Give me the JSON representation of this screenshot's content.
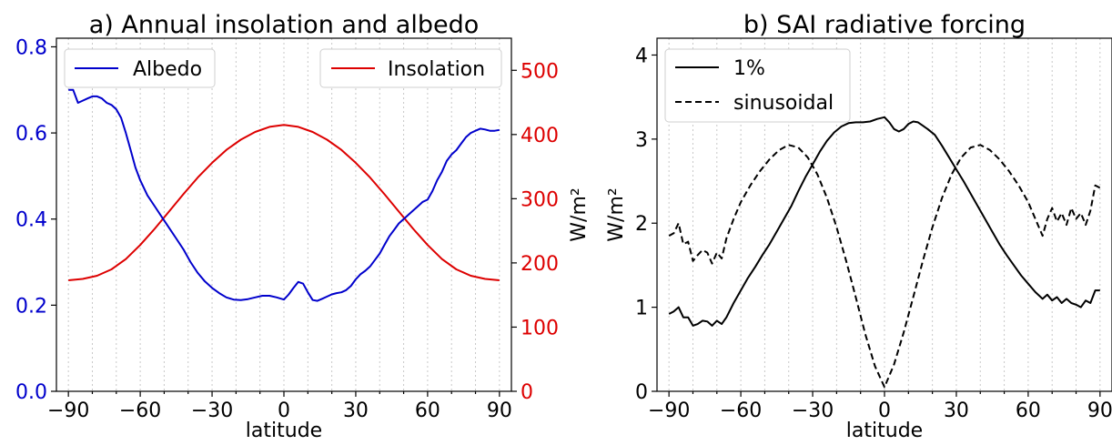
{
  "chart_data": [
    {
      "type": "line",
      "title": "a) Annual insolation and albedo",
      "xlabel": "latitude",
      "ylabel_left": "",
      "ylabel_right": "W/m²",
      "xlim": [
        -95,
        95
      ],
      "ylim_left": [
        0,
        0.82
      ],
      "ylim_right": [
        0,
        550
      ],
      "x_ticks": [
        -90,
        -60,
        -30,
        0,
        30,
        60,
        90
      ],
      "x_tick_labels": [
        "−90",
        "−60",
        "−30",
        "0",
        "30",
        "60",
        "90"
      ],
      "y_ticks_left": [
        0.0,
        0.2,
        0.4,
        0.6,
        0.8
      ],
      "y_tick_labels_left": [
        "0.0",
        "0.2",
        "0.4",
        "0.6",
        "0.8"
      ],
      "y_ticks_right": [
        0,
        100,
        200,
        300,
        400,
        500
      ],
      "y_tick_labels_right": [
        "0",
        "100",
        "200",
        "300",
        "400",
        "500"
      ],
      "grid": "vertical dotted at every 10° latitude",
      "left_axis_color": "#0000cc",
      "right_axis_color": "#dd0000",
      "legend_left": "upper-left",
      "legend_right": "upper-right",
      "series": [
        {
          "name": "Albedo",
          "axis": "left",
          "color": "#0000cc",
          "x": [
            -90,
            -88,
            -86,
            -84,
            -82,
            -80,
            -78,
            -76,
            -74,
            -72,
            -70,
            -68,
            -66,
            -64,
            -62,
            -60,
            -57,
            -54,
            -51,
            -48,
            -45,
            -42,
            -39,
            -36,
            -33,
            -30,
            -27,
            -24,
            -21,
            -18,
            -15,
            -12,
            -9,
            -6,
            -3,
            0,
            2,
            4,
            6,
            8,
            10,
            12,
            14,
            16,
            18,
            20,
            22,
            24,
            26,
            28,
            30,
            32,
            34,
            36,
            38,
            40,
            42,
            44,
            46,
            48,
            50,
            52,
            54,
            56,
            58,
            60,
            62,
            64,
            66,
            68,
            70,
            72,
            74,
            76,
            78,
            80,
            82,
            84,
            86,
            88,
            90
          ],
          "y": [
            0.7,
            0.7,
            0.67,
            0.675,
            0.68,
            0.685,
            0.685,
            0.68,
            0.67,
            0.665,
            0.655,
            0.635,
            0.6,
            0.56,
            0.52,
            0.49,
            0.455,
            0.43,
            0.405,
            0.38,
            0.355,
            0.33,
            0.3,
            0.275,
            0.255,
            0.24,
            0.228,
            0.218,
            0.213,
            0.212,
            0.214,
            0.218,
            0.222,
            0.222,
            0.218,
            0.213,
            0.225,
            0.24,
            0.254,
            0.25,
            0.23,
            0.212,
            0.21,
            0.215,
            0.22,
            0.225,
            0.228,
            0.23,
            0.235,
            0.245,
            0.26,
            0.272,
            0.28,
            0.29,
            0.305,
            0.32,
            0.34,
            0.36,
            0.375,
            0.39,
            0.4,
            0.41,
            0.42,
            0.43,
            0.44,
            0.445,
            0.465,
            0.49,
            0.51,
            0.535,
            0.55,
            0.56,
            0.575,
            0.59,
            0.6,
            0.605,
            0.61,
            0.608,
            0.605,
            0.605,
            0.607
          ]
        },
        {
          "name": "Insolation",
          "axis": "right",
          "color": "#dd0000",
          "x": [
            -90,
            -84,
            -78,
            -72,
            -66,
            -60,
            -54,
            -48,
            -42,
            -36,
            -30,
            -24,
            -18,
            -12,
            -6,
            0,
            6,
            12,
            18,
            24,
            30,
            36,
            42,
            48,
            54,
            60,
            66,
            72,
            78,
            84,
            90
          ],
          "y": [
            173,
            175,
            180,
            190,
            206,
            228,
            253,
            280,
            307,
            333,
            356,
            376,
            392,
            404,
            412,
            415,
            412,
            404,
            392,
            376,
            356,
            333,
            307,
            280,
            253,
            228,
            206,
            190,
            180,
            175,
            173
          ]
        }
      ]
    },
    {
      "type": "line",
      "title": "b) SAI radiative forcing",
      "xlabel": "latitude",
      "ylabel": "W/m²",
      "xlim": [
        -95,
        95
      ],
      "ylim": [
        0,
        4.2
      ],
      "x_ticks": [
        -90,
        -60,
        -30,
        0,
        30,
        60,
        90
      ],
      "x_tick_labels": [
        "−90",
        "−60",
        "−30",
        "0",
        "30",
        "60",
        "90"
      ],
      "y_ticks": [
        0,
        1,
        2,
        3,
        4
      ],
      "y_tick_labels": [
        "0",
        "1",
        "2",
        "3",
        "4"
      ],
      "grid": "vertical dotted at every 10° latitude",
      "legend": "upper-left",
      "series": [
        {
          "name": "1%",
          "style": "solid",
          "color": "#000000",
          "x": [
            -90,
            -88,
            -86,
            -84,
            -82,
            -80,
            -78,
            -76,
            -74,
            -72,
            -70,
            -68,
            -66,
            -63,
            -60,
            -57,
            -54,
            -51,
            -48,
            -45,
            -42,
            -39,
            -36,
            -33,
            -30,
            -27,
            -24,
            -21,
            -18,
            -15,
            -12,
            -9,
            -6,
            -3,
            0,
            2,
            4,
            6,
            8,
            10,
            12,
            14,
            16,
            18,
            21,
            24,
            27,
            30,
            33,
            36,
            39,
            42,
            45,
            48,
            51,
            54,
            57,
            60,
            63,
            66,
            68,
            70,
            72,
            74,
            76,
            78,
            80,
            82,
            84,
            86,
            88,
            90
          ],
          "y": [
            0.92,
            0.95,
            1.0,
            0.88,
            0.88,
            0.78,
            0.8,
            0.84,
            0.83,
            0.78,
            0.84,
            0.8,
            0.88,
            1.05,
            1.2,
            1.35,
            1.48,
            1.62,
            1.75,
            1.9,
            2.05,
            2.2,
            2.38,
            2.55,
            2.7,
            2.85,
            2.98,
            3.08,
            3.15,
            3.19,
            3.2,
            3.2,
            3.21,
            3.24,
            3.26,
            3.2,
            3.12,
            3.09,
            3.12,
            3.18,
            3.21,
            3.2,
            3.16,
            3.12,
            3.05,
            2.92,
            2.78,
            2.64,
            2.5,
            2.35,
            2.2,
            2.05,
            1.9,
            1.75,
            1.62,
            1.5,
            1.38,
            1.28,
            1.18,
            1.1,
            1.15,
            1.08,
            1.12,
            1.05,
            1.1,
            1.05,
            1.03,
            1.0,
            1.08,
            1.05,
            1.2,
            1.2
          ]
        },
        {
          "name": "sinusoidal",
          "style": "dashed",
          "color": "#000000",
          "x": [
            -90,
            -88,
            -86,
            -84,
            -82,
            -80,
            -78,
            -76,
            -74,
            -72,
            -70,
            -68,
            -66,
            -63,
            -60,
            -56,
            -52,
            -48,
            -44,
            -40,
            -36,
            -32,
            -28,
            -24,
            -20,
            -16,
            -12,
            -8,
            -4,
            0,
            4,
            8,
            12,
            16,
            20,
            24,
            28,
            32,
            36,
            40,
            44,
            48,
            52,
            56,
            60,
            63,
            66,
            68,
            70,
            72,
            74,
            76,
            78,
            80,
            82,
            84,
            86,
            88,
            90
          ],
          "y": [
            1.85,
            1.88,
            2.0,
            1.75,
            1.78,
            1.55,
            1.62,
            1.68,
            1.65,
            1.52,
            1.65,
            1.58,
            1.82,
            2.05,
            2.25,
            2.45,
            2.62,
            2.76,
            2.87,
            2.93,
            2.9,
            2.78,
            2.58,
            2.3,
            1.95,
            1.55,
            1.12,
            0.68,
            0.3,
            0.05,
            0.32,
            0.7,
            1.12,
            1.55,
            1.95,
            2.3,
            2.58,
            2.78,
            2.9,
            2.93,
            2.87,
            2.76,
            2.62,
            2.45,
            2.25,
            2.05,
            1.85,
            2.05,
            2.18,
            2.02,
            2.12,
            1.98,
            2.18,
            2.05,
            2.12,
            1.98,
            2.15,
            2.45,
            2.42
          ]
        }
      ]
    }
  ]
}
